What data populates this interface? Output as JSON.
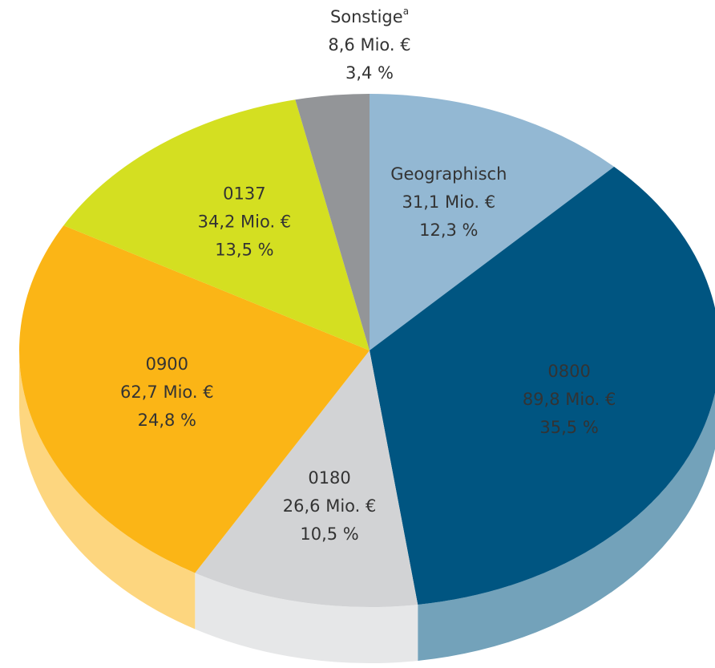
{
  "chart_data": {
    "type": "pie",
    "categories": [
      "Geographisch",
      "0800",
      "0180",
      "0900",
      "0137",
      "Sonstige"
    ],
    "category_superscripts": [
      null,
      null,
      null,
      null,
      null,
      "a"
    ],
    "values": [
      12.3,
      35.5,
      10.5,
      24.8,
      13.5,
      3.4
    ],
    "value_labels": [
      "12,3 %",
      "35,5 %",
      "10,5 %",
      "24,8 %",
      "13,5 %",
      "3,4 %"
    ],
    "amounts": [
      31.1,
      89.8,
      26.6,
      62.7,
      34.2,
      8.6
    ],
    "amount_labels": [
      "31,1 Mio. €",
      "89,8 Mio. €",
      "26,6 Mio. €",
      "62,7 Mio. €",
      "34,2 Mio. €",
      "8,6 Mio. €"
    ],
    "colors": [
      "#93b8d3",
      "#005581",
      "#d2d3d5",
      "#fbb516",
      "#d4df21",
      "#939598"
    ],
    "label_colors": [
      "#333333",
      "#ffffff",
      "#333333",
      "#333333",
      "#333333",
      "#333333"
    ]
  }
}
